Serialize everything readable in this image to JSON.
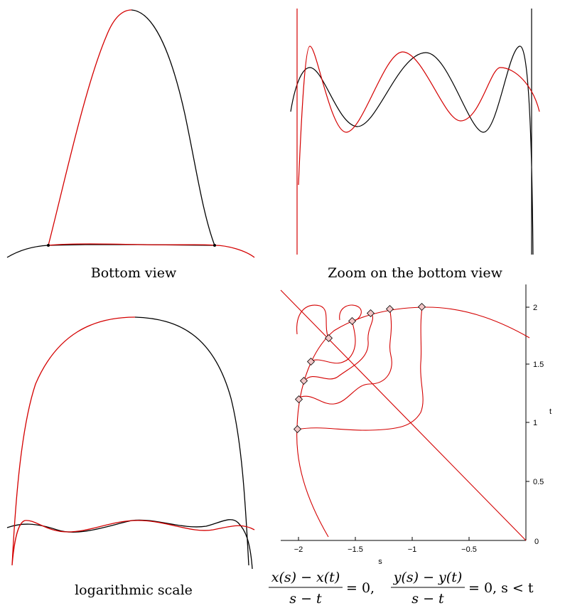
{
  "captions": {
    "bottom_view": "Bottom view",
    "zoom_view": "Zoom on the bottom view",
    "log_scale": "logarithmic scale"
  },
  "plot4": {
    "xlabel": "s",
    "ylabel": "t",
    "x_ticks": [
      "−2",
      "−1.5",
      "−1",
      "−0.5",
      "0"
    ],
    "y_ticks": [
      "0.5",
      "1",
      "1.5",
      "2"
    ],
    "x_range": [
      -2.2,
      0
    ],
    "y_range": [
      0,
      2.2
    ]
  },
  "formula": {
    "num1": "x(s) − x(t)",
    "den1": "s − t",
    "num2": "y(s) − y(t)",
    "den2": "s − t",
    "eq1": "= 0,",
    "eq2": "= 0, s < t"
  },
  "colors": {
    "black_curve": "#000000",
    "red_curve": "#d40000"
  }
}
